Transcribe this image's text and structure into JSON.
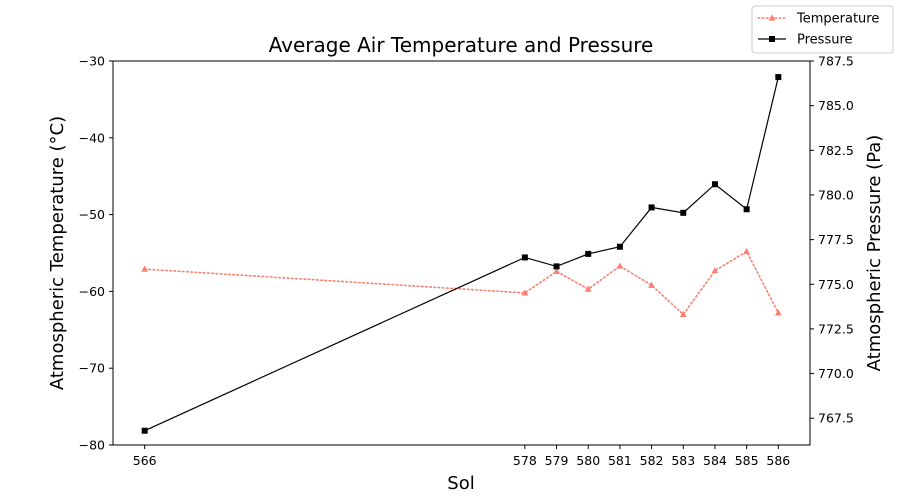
{
  "chart_data": {
    "type": "line",
    "title": "Average Air Temperature and Pressure",
    "xlabel": "Sol",
    "ylabel_left": "Atmospheric Temperature (°C)",
    "ylabel_right": "Atmospheric Pressure (Pa)",
    "x": [
      566,
      578,
      579,
      580,
      581,
      582,
      583,
      584,
      585,
      586
    ],
    "x_ticks": [
      "566",
      "578",
      "579",
      "580",
      "581",
      "582",
      "583",
      "584",
      "585",
      "586"
    ],
    "xlim": [
      565,
      587
    ],
    "ylim_left": [
      -80,
      -30
    ],
    "yticks_left": [
      "−80",
      "−70",
      "−60",
      "−50",
      "−40",
      "−30"
    ],
    "ylim_right": [
      766,
      787.5
    ],
    "yticks_right": [
      "767.5",
      "770.0",
      "772.5",
      "775.0",
      "777.5",
      "780.0",
      "782.5",
      "785.0",
      "787.5"
    ],
    "grid": false,
    "legend_position": "top-right",
    "series": [
      {
        "name": "Temperature",
        "axis": "left",
        "color": "#fa8072",
        "line_style": "dotted",
        "marker": "triangle",
        "values": [
          -57.1,
          -60.2,
          -57.4,
          -59.7,
          -56.7,
          -59.2,
          -63.0,
          -57.3,
          -54.8,
          -62.8
        ]
      },
      {
        "name": "Pressure",
        "axis": "right",
        "color": "#000000",
        "line_style": "solid",
        "marker": "square",
        "values": [
          766.8,
          776.5,
          776.0,
          776.7,
          777.1,
          779.3,
          779.0,
          780.6,
          779.2,
          786.6
        ]
      }
    ]
  }
}
